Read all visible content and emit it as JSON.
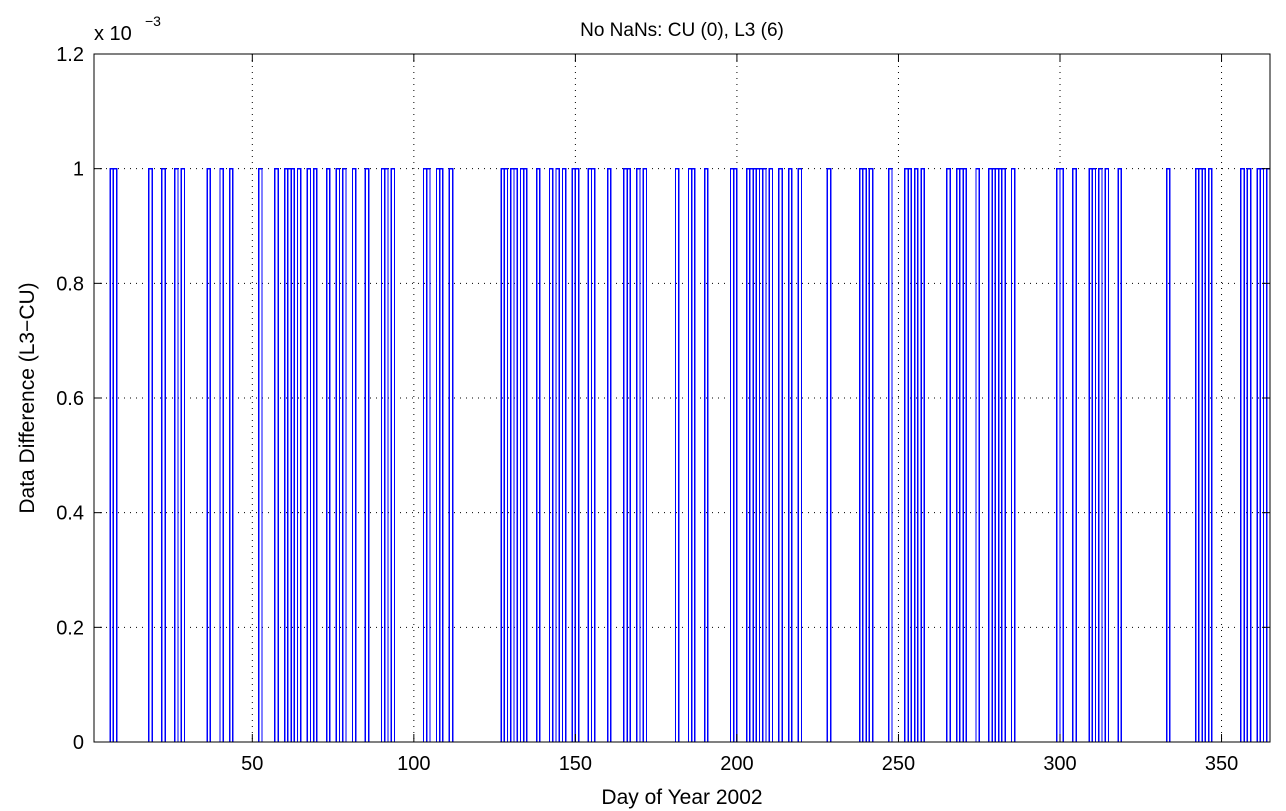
{
  "chart_data": {
    "type": "line",
    "title": "No NaNs:  CU (0), L3 (6)",
    "xlabel": "Day of Year 2002",
    "ylabel": "Data Difference (L3−CU)",
    "y_exponent_label": "x 10",
    "y_exponent_power": "−3",
    "xlim": [
      1,
      365
    ],
    "ylim": [
      0,
      1.2
    ],
    "y_scale_factor": 0.001,
    "x_ticks": [
      50,
      100,
      150,
      200,
      250,
      300,
      350
    ],
    "x_tick_labels": [
      "50",
      "100",
      "150",
      "200",
      "250",
      "300",
      "350"
    ],
    "y_ticks": [
      0,
      0.2,
      0.4,
      0.6,
      0.8,
      1,
      1.2
    ],
    "y_tick_labels": [
      "0",
      "0.2",
      "0.4",
      "0.6",
      "0.8",
      "1",
      "1.2"
    ],
    "grid": true,
    "line_color": "#0000ff",
    "description": "Step series equal to 0 except single-sample spikes of 1 (×10^-3) at the listed days",
    "spike_value": 1,
    "spike_days": [
      6,
      7,
      18,
      22,
      26,
      28,
      36,
      40,
      43,
      52,
      57,
      60,
      61,
      62,
      64,
      67,
      69,
      73,
      76,
      78,
      81,
      85,
      90,
      91,
      93,
      103,
      104,
      107,
      108,
      111,
      127,
      128,
      130,
      131,
      133,
      134,
      138,
      142,
      144,
      146,
      149,
      150,
      154,
      155,
      160,
      165,
      166,
      169,
      171,
      181,
      185,
      186,
      190,
      198,
      199,
      203,
      204,
      205,
      206,
      207,
      208,
      210,
      213,
      216,
      219,
      228,
      238,
      239,
      241,
      247,
      252,
      253,
      255,
      257,
      265,
      268,
      269,
      270,
      274,
      278,
      279,
      280,
      281,
      282,
      285,
      299,
      300,
      304,
      309,
      310,
      312,
      314,
      318,
      333,
      342,
      343,
      344,
      346,
      356,
      358,
      361,
      362,
      364
    ]
  }
}
